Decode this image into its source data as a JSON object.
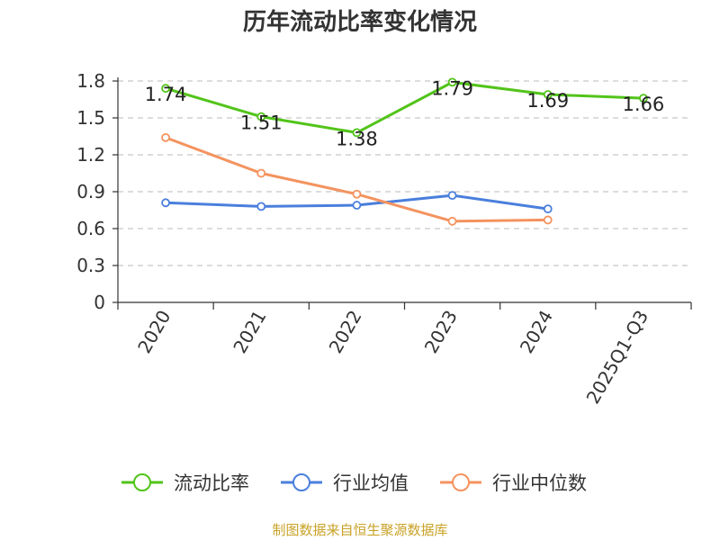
{
  "chart_data": {
    "type": "line",
    "title": "历年流动比率变化情况",
    "categories": [
      "2020",
      "2021",
      "2022",
      "2023",
      "2024",
      "2025Q1-Q3"
    ],
    "ylim": [
      0,
      1.8
    ],
    "yticks": [
      "0",
      "0.3",
      "0.6",
      "0.9",
      "1.2",
      "1.5",
      "1.8"
    ],
    "grid": true,
    "legend_position": "bottom",
    "series": [
      {
        "name": "流动比率",
        "color": "#52c41a",
        "values": [
          1.74,
          1.51,
          1.38,
          1.79,
          1.69,
          1.66
        ],
        "labels": [
          "1.74",
          "1.51",
          "1.38",
          "1.79",
          "1.69",
          "1.66"
        ]
      },
      {
        "name": "行业均值",
        "color": "#4a7fdc",
        "values": [
          0.81,
          0.78,
          0.79,
          0.87,
          0.76,
          null
        ]
      },
      {
        "name": "行业中位数",
        "color": "#f4935f",
        "values": [
          1.34,
          1.05,
          0.88,
          0.66,
          0.67,
          null
        ]
      }
    ]
  },
  "footer": {
    "source": "制图数据来自恒生聚源数据库",
    "source_color": "#c9a227"
  }
}
